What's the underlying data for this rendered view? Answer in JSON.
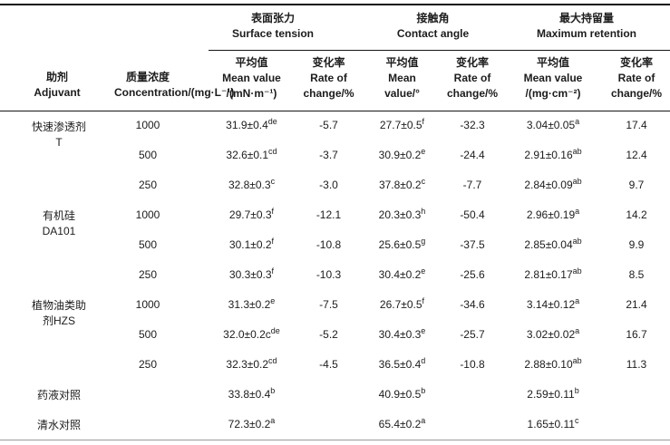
{
  "table": {
    "header": {
      "adjuvant_lines": [
        "助剂",
        "Adjuvant"
      ],
      "concentration_lines": [
        "质量浓度",
        "Concentration/(mg·L⁻¹)"
      ],
      "groups": [
        {
          "lines": [
            "表面张力",
            "Surface tension"
          ],
          "mean": [
            "平均值",
            "Mean value",
            "/(mN·m⁻¹)"
          ],
          "rate": [
            "变化率",
            "Rate of",
            "change/%"
          ]
        },
        {
          "lines": [
            "接触角",
            "Contact angle"
          ],
          "mean": [
            "平均值",
            "Mean",
            "value/°"
          ],
          "rate": [
            "变化率",
            "Rate of",
            "change/%"
          ]
        },
        {
          "lines": [
            "最大持留量",
            "Maximum retention"
          ],
          "mean": [
            "平均值",
            "Mean value",
            "/(mg·cm⁻²)"
          ],
          "rate": [
            "变化率",
            "Rate of",
            "change/%"
          ]
        }
      ]
    },
    "rows": [
      {
        "adjuvant": [
          "快速渗透剂",
          "T"
        ],
        "rowspan": 3,
        "cells": [
          "1000",
          {
            "v": "31.9±0.4",
            "s": "de"
          },
          "-5.7",
          {
            "v": "27.7±0.5",
            "s": "f"
          },
          "-32.3",
          {
            "v": "3.04±0.05",
            "s": "a"
          },
          "17.4"
        ]
      },
      {
        "cells": [
          "500",
          {
            "v": "32.6±0.1",
            "s": "cd"
          },
          "-3.7",
          {
            "v": "30.9±0.2",
            "s": "e"
          },
          "-24.4",
          {
            "v": "2.91±0.16",
            "s": "ab"
          },
          "12.4"
        ]
      },
      {
        "cells": [
          "250",
          {
            "v": "32.8±0.3",
            "s": "c"
          },
          "-3.0",
          {
            "v": "37.8±0.2",
            "s": "c"
          },
          "-7.7",
          {
            "v": "2.84±0.09",
            "s": "ab"
          },
          "9.7"
        ]
      },
      {
        "adjuvant": [
          "有机硅",
          "DA101"
        ],
        "rowspan": 3,
        "cells": [
          "1000",
          {
            "v": "29.7±0.3",
            "s": "f"
          },
          "-12.1",
          {
            "v": "20.3±0.3",
            "s": "h"
          },
          "-50.4",
          {
            "v": "2.96±0.19",
            "s": "a"
          },
          "14.2"
        ]
      },
      {
        "cells": [
          "500",
          {
            "v": "30.1±0.2",
            "s": "f"
          },
          "-10.8",
          {
            "v": "25.6±0.5",
            "s": "g"
          },
          "-37.5",
          {
            "v": "2.85±0.04",
            "s": "ab"
          },
          "9.9"
        ]
      },
      {
        "cells": [
          "250",
          {
            "v": "30.3±0.3",
            "s": "f"
          },
          "-10.3",
          {
            "v": "30.4±0.2",
            "s": "e"
          },
          "-25.6",
          {
            "v": "2.81±0.17",
            "s": "ab"
          },
          "8.5"
        ]
      },
      {
        "adjuvant": [
          "植物油类助",
          "剂HZS"
        ],
        "rowspan": 3,
        "cells": [
          "1000",
          {
            "v": "31.3±0.2",
            "s": "e"
          },
          "-7.5",
          {
            "v": "26.7±0.5",
            "s": "f"
          },
          "-34.6",
          {
            "v": "3.14±0.12",
            "s": "a"
          },
          "21.4"
        ]
      },
      {
        "cells": [
          "500",
          {
            "v": "32.0±0.2c",
            "s": "de"
          },
          "-5.2",
          {
            "v": "30.4±0.3",
            "s": "e"
          },
          "-25.7",
          {
            "v": "3.02±0.02",
            "s": "a"
          },
          "16.7"
        ]
      },
      {
        "cells": [
          "250",
          {
            "v": "32.3±0.2",
            "s": "cd"
          },
          "-4.5",
          {
            "v": "36.5±0.4",
            "s": "d"
          },
          "-10.8",
          {
            "v": "2.88±0.10",
            "s": "ab"
          },
          "11.3"
        ]
      },
      {
        "adjuvant": [
          "药液对照"
        ],
        "rowspan": 1,
        "cells": [
          "",
          {
            "v": "33.8±0.4",
            "s": "b"
          },
          "",
          {
            "v": "40.9±0.5",
            "s": "b"
          },
          "",
          {
            "v": "2.59±0.11",
            "s": "b"
          },
          ""
        ]
      },
      {
        "adjuvant": [
          "清水对照"
        ],
        "rowspan": 1,
        "cells": [
          "",
          {
            "v": "72.3±0.2",
            "s": "a"
          },
          "",
          {
            "v": "65.4±0.2",
            "s": "a"
          },
          "",
          {
            "v": "1.65±0.11",
            "s": "c"
          },
          ""
        ]
      }
    ],
    "column_cell_names": [
      "concentration-cell",
      "surface-tension-mean-cell",
      "surface-tension-rate-cell",
      "contact-angle-mean-cell",
      "contact-angle-rate-cell",
      "max-retention-mean-cell",
      "max-retention-rate-cell"
    ]
  }
}
